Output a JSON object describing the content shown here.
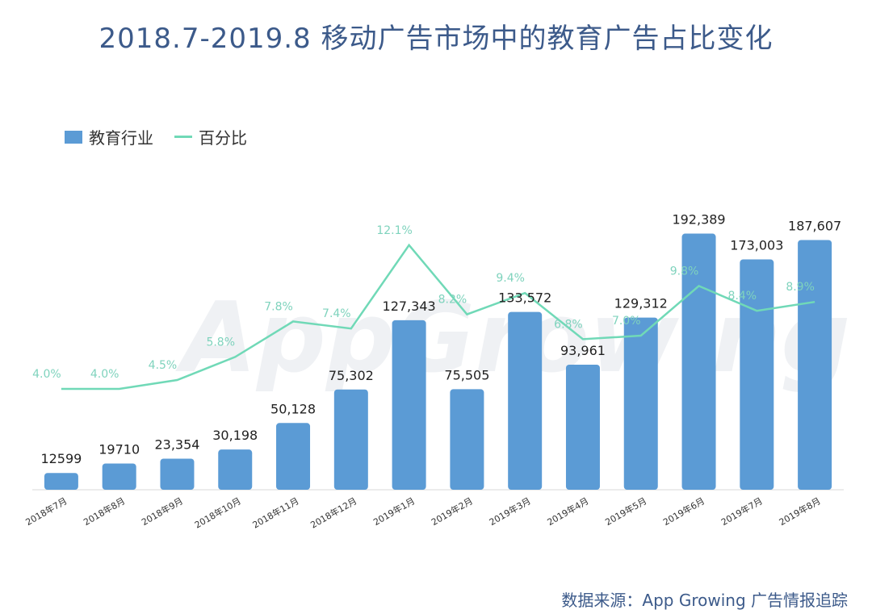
{
  "title": "2018.7-2019.8 移动广告市场中的教育广告占比变化",
  "legend": {
    "bar_label": "教育行业",
    "line_label": "百分比"
  },
  "watermark": "AppGrowing",
  "source": "数据来源：App Growing 广告情报追踪",
  "colors": {
    "bar": "#5b9bd5",
    "line": "#70d9b7",
    "title": "#3c5a8a"
  },
  "chart_data": {
    "type": "bar",
    "categories": [
      "2018年7月",
      "2018年8月",
      "2018年9月",
      "2018年10月",
      "2018年11月",
      "2018年12月",
      "2019年1月",
      "2019年2月",
      "2019年3月",
      "2019年4月",
      "2019年5月",
      "2019年6月",
      "2019年7月",
      "2019年8月"
    ],
    "series": [
      {
        "name": "教育行业",
        "type": "bar",
        "values": [
          12599,
          19710,
          23354,
          30198,
          50128,
          75302,
          127343,
          75505,
          133572,
          93961,
          129312,
          192389,
          173003,
          187607
        ],
        "labels": [
          "12599",
          "19710",
          "23,354",
          "30,198",
          "50,128",
          "75,302",
          "127,343",
          "75,505",
          "133,572",
          "93,961",
          "129,312",
          "192,389",
          "173,003",
          "187,607"
        ]
      },
      {
        "name": "百分比",
        "type": "line",
        "values": [
          4.0,
          4.0,
          4.5,
          5.8,
          7.8,
          7.4,
          12.1,
          8.2,
          9.4,
          6.8,
          7.0,
          9.8,
          8.4,
          8.9
        ],
        "labels": [
          "4.0%",
          "4.0%",
          "4.5%",
          "5.8%",
          "7.8%",
          "7.4%",
          "12.1%",
          "8.2%",
          "9.4%",
          "6.8%",
          "7.0%",
          "9.8%",
          "8.4%",
          "8.9%"
        ]
      }
    ],
    "legend_position": "top-left",
    "grid": false
  }
}
